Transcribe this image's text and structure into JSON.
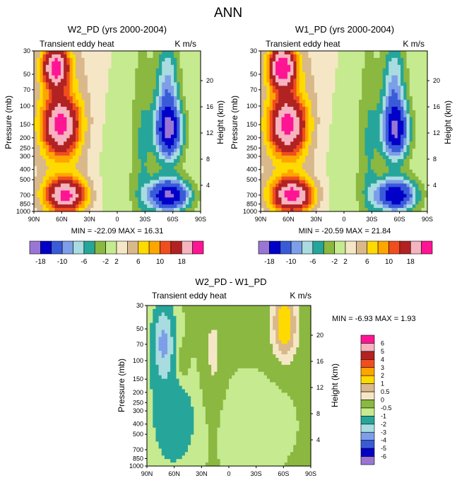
{
  "page_title": "ANN",
  "colors": {
    "palette_main": [
      "#9a76d4",
      "#0000c8",
      "#3a5bd8",
      "#7d9ee8",
      "#a8dce0",
      "#26a69a",
      "#8ab840",
      "#c6ea8f",
      "#f5e7c6",
      "#d9b88b",
      "#ffda00",
      "#ffa500",
      "#f04e1e",
      "#b22222",
      "#f6b3c0",
      "#ff1493"
    ],
    "palette_diff": [
      "#9a76d4",
      "#0000c8",
      "#3a5bd8",
      "#7d9ee8",
      "#a8dce0",
      "#26a69a",
      "#c6ea8f",
      "#8ab840",
      "#f5e7c6",
      "#d9b88b",
      "#ffda00",
      "#ffa500",
      "#f04e1e",
      "#b22222",
      "#f6b3c0",
      "#ff1493"
    ]
  },
  "chart_data": [
    {
      "type": "heatmap",
      "title": "W2_PD (yrs 2000-2004)",
      "left_label": "Transient eddy heat",
      "right_label": "K m/s",
      "ylabel": "Pressure (mb)",
      "ylabel_right": "Height (km)",
      "xticks": [
        "90N",
        "60N",
        "30N",
        "0",
        "30S",
        "60S",
        "90S"
      ],
      "yticks": [
        "30",
        "50",
        "70",
        "100",
        "150",
        "200",
        "250",
        "300",
        "400",
        "500",
        "700",
        "850",
        "1000"
      ],
      "yticks_right": [
        "20",
        "16",
        "12",
        "8",
        "4"
      ],
      "min_max_text": "MIN = -22.09  MAX = 16.31",
      "colorbar_labels": [
        "-18",
        "-10",
        "-6",
        "-2",
        "2",
        "6",
        "10",
        "18"
      ]
    },
    {
      "type": "heatmap",
      "title": "W1_PD (yrs 2000-2004)",
      "left_label": "Transient eddy heat",
      "right_label": "K m/s",
      "ylabel": "Pressure (mb)",
      "ylabel_right": "Height (km)",
      "xticks": [
        "90N",
        "60N",
        "30N",
        "0",
        "30S",
        "60S",
        "90S"
      ],
      "yticks": [
        "30",
        "50",
        "70",
        "100",
        "150",
        "200",
        "250",
        "300",
        "400",
        "500",
        "700",
        "850",
        "1000"
      ],
      "yticks_right": [
        "20",
        "16",
        "12",
        "8",
        "4"
      ],
      "min_max_text": "MIN = -20.59  MAX = 21.84",
      "colorbar_labels": [
        "-18",
        "-10",
        "-6",
        "-2",
        "2",
        "6",
        "10",
        "18"
      ]
    },
    {
      "type": "heatmap",
      "title": "W2_PD - W1_PD",
      "left_label": "Transient eddy heat",
      "right_label": "K m/s",
      "ylabel": "Pressure (mb)",
      "ylabel_right": "Height (km)",
      "xticks": [
        "90N",
        "60N",
        "30N",
        "0",
        "30S",
        "60S",
        "90S"
      ],
      "yticks": [
        "30",
        "50",
        "70",
        "100",
        "150",
        "200",
        "250",
        "300",
        "400",
        "500",
        "700",
        "850",
        "1000"
      ],
      "yticks_right": [
        "20",
        "16",
        "12",
        "8",
        "4"
      ],
      "min_max_text": "MIN =  -6.93  MAX =   1.93",
      "colorbar_labels": [
        "6",
        "5",
        "4",
        "3",
        "2",
        "1",
        "0.5",
        "0",
        "-0.5",
        "-1",
        "-2",
        "-3",
        "-4",
        "-5",
        "-6"
      ]
    }
  ]
}
